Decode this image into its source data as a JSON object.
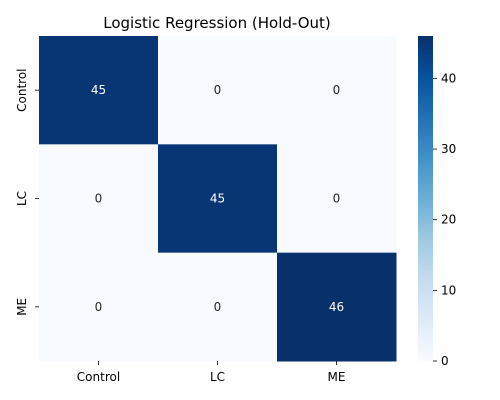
{
  "chart_data": {
    "type": "heatmap",
    "title": "Logistic Regression (Hold-Out)",
    "xlabel": "",
    "ylabel": "",
    "x_categories": [
      "Control",
      "LC",
      "ME"
    ],
    "y_categories": [
      "Control",
      "LC",
      "ME"
    ],
    "values": [
      [
        45,
        0,
        0
      ],
      [
        0,
        45,
        0
      ],
      [
        0,
        0,
        46
      ]
    ],
    "colormap": "Blues",
    "color_low": "#f7fbff",
    "color_high": "#08306b",
    "vmin": 0,
    "vmax": 46,
    "colorbar_ticks": [
      0,
      10,
      20,
      30,
      40
    ],
    "grid": false,
    "legend": "colorbar-right"
  }
}
